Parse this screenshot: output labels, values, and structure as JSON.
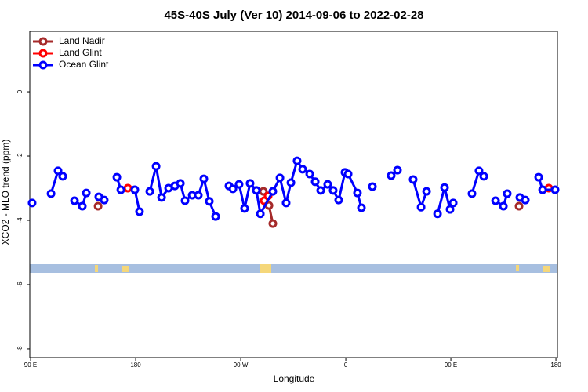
{
  "chart_data": {
    "type": "line",
    "title": "45S-40S July (Ver 10)   2014-09-06 to 2022-02-28",
    "x_label": "Longitude",
    "y_label": "XCO2 - MLO trend (ppm)",
    "xlim": [
      89.3,
      541.3
    ],
    "ylim": [
      -8.27,
      1.88
    ],
    "xticks": [
      {
        "value": 90,
        "label": "90 E"
      },
      180,
      {
        "value": 270,
        "label": "90 W"
      },
      {
        "value": 360,
        "label": "0"
      },
      {
        "value": 450,
        "label": "90 E"
      },
      {
        "value": 540,
        "label": "180"
      }
    ],
    "yticks": [
      -8,
      -6,
      -4,
      -2,
      0
    ],
    "legend": "top-left",
    "series": [
      {
        "name": "Land Nadir",
        "color": "#a52a2a",
        "x": [
          147.8,
          null,
          289.4,
          294.2,
          297.5,
          null,
          508.4
        ],
        "values": [
          -3.56,
          null,
          -3.1,
          -3.54,
          -4.1,
          null,
          -3.56
        ]
      },
      {
        "name": "Land Glint",
        "color": "#ff0000",
        "x": [
          173.3,
          null,
          290.1,
          293.5,
          null,
          533.9
        ],
        "values": [
          -3.0,
          null,
          -3.39,
          -3.24,
          null,
          -3.0
        ]
      },
      {
        "name": "Ocean Glint",
        "color": "#0000ff",
        "x": [
          91.3,
          null,
          107.5,
          113.5,
          117.5,
          null,
          127.6,
          134.3,
          137.7,
          null,
          148.4,
          153.1,
          null,
          163.9,
          167.3,
          null,
          179.3,
          183.3,
          null,
          192.1,
          197.5,
          202.2,
          208.2,
          213.6,
          218.3,
          222.3,
          228.4,
          233.7,
          238.4,
          243.1,
          248.5,
          null,
          259.9,
          263.3,
          268.6,
          273.3,
          278.0,
          283.4,
          286.8,
          297.5,
          303.6,
          308.9,
          313.0,
          318.3,
          323.0,
          329.1,
          333.8,
          338.5,
          344.5,
          349.2,
          353.9,
          359.3,
          362.0,
          370.0,
          373.4,
          null,
          382.8,
          null,
          398.9,
          404.3,
          null,
          417.7,
          424.5,
          429.2,
          null,
          438.6,
          444.6,
          449.3,
          452.0,
          null,
          468.1,
          474.1,
          478.2,
          null,
          488.3,
          495.0,
          498.3,
          null,
          509.1,
          513.8,
          null,
          525.2,
          528.6,
          539.3
        ],
        "values": [
          -3.46,
          null,
          -3.17,
          -2.46,
          -2.63,
          null,
          -3.39,
          -3.56,
          -3.15,
          null,
          -3.27,
          -3.37,
          null,
          -2.66,
          -3.05,
          null,
          -3.05,
          -3.73,
          null,
          -3.1,
          -2.32,
          -3.29,
          -3.0,
          -2.93,
          -2.85,
          -3.39,
          -3.22,
          -3.22,
          -2.71,
          -3.41,
          -3.88,
          null,
          -2.93,
          -3.02,
          -2.88,
          -3.63,
          -2.85,
          -3.07,
          -3.8,
          -3.1,
          -2.68,
          -3.46,
          -2.83,
          -2.15,
          -2.41,
          -2.56,
          -2.8,
          -3.07,
          -2.88,
          -3.07,
          -3.37,
          -2.51,
          -2.56,
          -3.15,
          -3.61,
          null,
          -2.95,
          null,
          -2.61,
          -2.44,
          null,
          -2.73,
          -3.59,
          -3.1,
          null,
          -3.8,
          -2.98,
          -3.66,
          -3.46,
          null,
          -3.17,
          -2.46,
          -2.63,
          null,
          -3.39,
          -3.56,
          -3.17,
          null,
          -3.29,
          -3.37,
          null,
          -2.66,
          -3.05,
          -3.05
        ]
      }
    ]
  }
}
